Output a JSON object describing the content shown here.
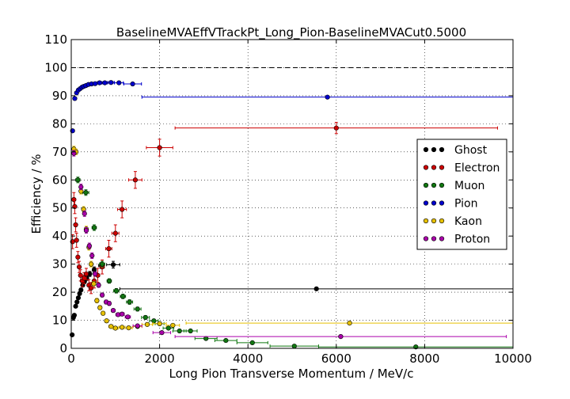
{
  "chart_data": {
    "type": "scatter",
    "title": "BaselineMVAEffVTrackPt_Long_Pion-BaselineMVACut0.5000",
    "xlabel": "Long Pion Transverse Momentum / MeV/c",
    "ylabel": "Efficiency / %",
    "xlim": [
      0,
      10000
    ],
    "ylim": [
      0,
      110
    ],
    "xticks": [
      0,
      2000,
      4000,
      6000,
      8000,
      10000
    ],
    "yticks": [
      0,
      10,
      20,
      30,
      40,
      50,
      60,
      70,
      80,
      90,
      100,
      110
    ],
    "grid": true,
    "reference_line_y": 100,
    "legend_position": "right",
    "series": [
      {
        "name": "Ghost",
        "color": "#000000",
        "points": [
          {
            "x": 20,
            "y": 4.8,
            "xerr": 20,
            "yerr": 0.3
          },
          {
            "x": 50,
            "y": 11.0,
            "xerr": 10,
            "yerr": 0.4
          },
          {
            "x": 70,
            "y": 11.8,
            "xerr": 10,
            "yerr": 0.4
          },
          {
            "x": 100,
            "y": 15.0,
            "xerr": 10,
            "yerr": 0.5
          },
          {
            "x": 130,
            "y": 16.5,
            "xerr": 10,
            "yerr": 0.5
          },
          {
            "x": 160,
            "y": 18.0,
            "xerr": 10,
            "yerr": 0.5
          },
          {
            "x": 190,
            "y": 19.5,
            "xerr": 10,
            "yerr": 0.6
          },
          {
            "x": 220,
            "y": 20.8,
            "xerr": 10,
            "yerr": 0.6
          },
          {
            "x": 260,
            "y": 22.5,
            "xerr": 15,
            "yerr": 0.6
          },
          {
            "x": 300,
            "y": 23.8,
            "xerr": 15,
            "yerr": 0.7
          },
          {
            "x": 350,
            "y": 25.0,
            "xerr": 20,
            "yerr": 0.8
          },
          {
            "x": 420,
            "y": 26.5,
            "xerr": 30,
            "yerr": 0.9
          },
          {
            "x": 520,
            "y": 28.0,
            "xerr": 40,
            "yerr": 1.0
          },
          {
            "x": 680,
            "y": 29.5,
            "xerr": 60,
            "yerr": 1.0
          },
          {
            "x": 950,
            "y": 29.8,
            "xerr": 150,
            "yerr": 1.2
          },
          {
            "x": 5550,
            "y": 21.2,
            "xerr": 4450,
            "yerr": 0.5
          }
        ]
      },
      {
        "name": "Electron",
        "color": "#cc0000",
        "points": [
          {
            "x": 30,
            "y": 38.0,
            "xerr": 20,
            "yerr": 2.5
          },
          {
            "x": 60,
            "y": 53.0,
            "xerr": 10,
            "yerr": 2.5
          },
          {
            "x": 80,
            "y": 50.5,
            "xerr": 10,
            "yerr": 2.5
          },
          {
            "x": 100,
            "y": 44.0,
            "xerr": 10,
            "yerr": 2.5
          },
          {
            "x": 120,
            "y": 38.5,
            "xerr": 10,
            "yerr": 2.5
          },
          {
            "x": 150,
            "y": 32.5,
            "xerr": 10,
            "yerr": 2.0
          },
          {
            "x": 180,
            "y": 29.0,
            "xerr": 10,
            "yerr": 2.0
          },
          {
            "x": 210,
            "y": 26.0,
            "xerr": 10,
            "yerr": 2.0
          },
          {
            "x": 250,
            "y": 24.0,
            "xerr": 15,
            "yerr": 2.0
          },
          {
            "x": 290,
            "y": 25.0,
            "xerr": 15,
            "yerr": 2.0
          },
          {
            "x": 340,
            "y": 26.5,
            "xerr": 20,
            "yerr": 2.0
          },
          {
            "x": 400,
            "y": 22.5,
            "xerr": 25,
            "yerr": 2.0
          },
          {
            "x": 450,
            "y": 21.5,
            "xerr": 25,
            "yerr": 2.0
          },
          {
            "x": 520,
            "y": 24.0,
            "xerr": 30,
            "yerr": 2.5
          },
          {
            "x": 600,
            "y": 26.0,
            "xerr": 40,
            "yerr": 2.5
          },
          {
            "x": 700,
            "y": 29.0,
            "xerr": 50,
            "yerr": 2.5
          },
          {
            "x": 850,
            "y": 35.5,
            "xerr": 70,
            "yerr": 3.0
          },
          {
            "x": 1000,
            "y": 41.0,
            "xerr": 80,
            "yerr": 3.0
          },
          {
            "x": 1150,
            "y": 49.5,
            "xerr": 100,
            "yerr": 3.0
          },
          {
            "x": 1450,
            "y": 60.0,
            "xerr": 150,
            "yerr": 3.0
          },
          {
            "x": 2000,
            "y": 71.5,
            "xerr": 300,
            "yerr": 3.0
          },
          {
            "x": 6000,
            "y": 78.5,
            "xerr": 3650,
            "yerr": 2.0
          }
        ]
      },
      {
        "name": "Muon",
        "color": "#117711",
        "points": [
          {
            "x": 150,
            "y": 60.0,
            "xerr": 50,
            "yerr": 1.0
          },
          {
            "x": 330,
            "y": 55.5,
            "xerr": 70,
            "yerr": 1.0
          },
          {
            "x": 520,
            "y": 43.0,
            "xerr": 50,
            "yerr": 1.0
          },
          {
            "x": 700,
            "y": 30.0,
            "xerr": 60,
            "yerr": 1.0
          },
          {
            "x": 860,
            "y": 24.0,
            "xerr": 50,
            "yerr": 0.8
          },
          {
            "x": 1020,
            "y": 20.5,
            "xerr": 60,
            "yerr": 0.8
          },
          {
            "x": 1170,
            "y": 18.5,
            "xerr": 60,
            "yerr": 0.8
          },
          {
            "x": 1320,
            "y": 16.5,
            "xerr": 70,
            "yerr": 0.8
          },
          {
            "x": 1500,
            "y": 14.0,
            "xerr": 80,
            "yerr": 0.7
          },
          {
            "x": 1680,
            "y": 11.0,
            "xerr": 90,
            "yerr": 0.6
          },
          {
            "x": 1870,
            "y": 9.8,
            "xerr": 100,
            "yerr": 0.6
          },
          {
            "x": 2000,
            "y": 8.8,
            "xerr": 100,
            "yerr": 0.6
          },
          {
            "x": 2200,
            "y": 7.2,
            "xerr": 120,
            "yerr": 0.5
          },
          {
            "x": 2450,
            "y": 6.2,
            "xerr": 150,
            "yerr": 0.5
          },
          {
            "x": 2700,
            "y": 6.2,
            "xerr": 150,
            "yerr": 0.5
          },
          {
            "x": 3050,
            "y": 3.5,
            "xerr": 250,
            "yerr": 0.4
          },
          {
            "x": 3500,
            "y": 2.8,
            "xerr": 250,
            "yerr": 0.4
          },
          {
            "x": 4100,
            "y": 2.0,
            "xerr": 350,
            "yerr": 0.3
          },
          {
            "x": 5050,
            "y": 0.8,
            "xerr": 550,
            "yerr": 0.2
          },
          {
            "x": 7800,
            "y": 0.5,
            "xerr": 2200,
            "yerr": 0.2
          }
        ]
      },
      {
        "name": "Pion",
        "color": "#0000cc",
        "points": [
          {
            "x": 30,
            "y": 77.5,
            "xerr": 30,
            "yerr": 0.5
          },
          {
            "x": 80,
            "y": 89.0,
            "xerr": 15,
            "yerr": 0.3
          },
          {
            "x": 120,
            "y": 91.0,
            "xerr": 10,
            "yerr": 0.3
          },
          {
            "x": 160,
            "y": 92.0,
            "xerr": 10,
            "yerr": 0.3
          },
          {
            "x": 200,
            "y": 92.5,
            "xerr": 10,
            "yerr": 0.3
          },
          {
            "x": 240,
            "y": 93.0,
            "xerr": 10,
            "yerr": 0.3
          },
          {
            "x": 280,
            "y": 93.3,
            "xerr": 15,
            "yerr": 0.3
          },
          {
            "x": 330,
            "y": 93.6,
            "xerr": 20,
            "yerr": 0.3
          },
          {
            "x": 390,
            "y": 94.0,
            "xerr": 25,
            "yerr": 0.3
          },
          {
            "x": 460,
            "y": 94.2,
            "xerr": 30,
            "yerr": 0.3
          },
          {
            "x": 540,
            "y": 94.3,
            "xerr": 35,
            "yerr": 0.3
          },
          {
            "x": 640,
            "y": 94.6,
            "xerr": 50,
            "yerr": 0.3
          },
          {
            "x": 760,
            "y": 94.6,
            "xerr": 60,
            "yerr": 0.3
          },
          {
            "x": 900,
            "y": 94.7,
            "xerr": 70,
            "yerr": 0.3
          },
          {
            "x": 1080,
            "y": 94.6,
            "xerr": 100,
            "yerr": 0.3
          },
          {
            "x": 1390,
            "y": 94.2,
            "xerr": 200,
            "yerr": 0.3
          },
          {
            "x": 5800,
            "y": 89.5,
            "xerr": 4200,
            "yerr": 0.3
          }
        ]
      },
      {
        "name": "Kaon",
        "color": "#e6c000",
        "points": [
          {
            "x": 60,
            "y": 71.0,
            "xerr": 20,
            "yerr": 1.0
          },
          {
            "x": 110,
            "y": 70.0,
            "xerr": 10,
            "yerr": 1.0
          },
          {
            "x": 220,
            "y": 56.0,
            "xerr": 15,
            "yerr": 1.0
          },
          {
            "x": 280,
            "y": 49.5,
            "xerr": 15,
            "yerr": 1.0
          },
          {
            "x": 340,
            "y": 42.5,
            "xerr": 20,
            "yerr": 1.0
          },
          {
            "x": 400,
            "y": 36.0,
            "xerr": 20,
            "yerr": 1.0
          },
          {
            "x": 450,
            "y": 30.0,
            "xerr": 20,
            "yerr": 1.0
          },
          {
            "x": 510,
            "y": 23.0,
            "xerr": 25,
            "yerr": 0.8
          },
          {
            "x": 580,
            "y": 17.0,
            "xerr": 25,
            "yerr": 0.8
          },
          {
            "x": 650,
            "y": 14.5,
            "xerr": 30,
            "yerr": 0.7
          },
          {
            "x": 720,
            "y": 12.5,
            "xerr": 30,
            "yerr": 0.7
          },
          {
            "x": 800,
            "y": 9.8,
            "xerr": 40,
            "yerr": 0.6
          },
          {
            "x": 900,
            "y": 7.8,
            "xerr": 50,
            "yerr": 0.5
          },
          {
            "x": 1000,
            "y": 7.2,
            "xerr": 60,
            "yerr": 0.5
          },
          {
            "x": 1150,
            "y": 7.5,
            "xerr": 70,
            "yerr": 0.5
          },
          {
            "x": 1300,
            "y": 7.3,
            "xerr": 80,
            "yerr": 0.5
          },
          {
            "x": 1500,
            "y": 7.8,
            "xerr": 100,
            "yerr": 0.5
          },
          {
            "x": 1720,
            "y": 8.5,
            "xerr": 120,
            "yerr": 0.5
          },
          {
            "x": 2000,
            "y": 8.8,
            "xerr": 150,
            "yerr": 0.5
          },
          {
            "x": 2300,
            "y": 8.2,
            "xerr": 150,
            "yerr": 0.5
          },
          {
            "x": 6300,
            "y": 9.0,
            "xerr": 3700,
            "yerr": 0.4
          }
        ]
      },
      {
        "name": "Proton",
        "color": "#aa00aa",
        "points": [
          {
            "x": 60,
            "y": 69.5,
            "xerr": 20,
            "yerr": 1.0
          },
          {
            "x": 220,
            "y": 57.5,
            "xerr": 15,
            "yerr": 1.0
          },
          {
            "x": 300,
            "y": 48.0,
            "xerr": 15,
            "yerr": 1.0
          },
          {
            "x": 340,
            "y": 42.0,
            "xerr": 20,
            "yerr": 1.0
          },
          {
            "x": 410,
            "y": 36.5,
            "xerr": 20,
            "yerr": 1.0
          },
          {
            "x": 470,
            "y": 33.0,
            "xerr": 20,
            "yerr": 1.0
          },
          {
            "x": 540,
            "y": 26.5,
            "xerr": 25,
            "yerr": 0.8
          },
          {
            "x": 620,
            "y": 22.5,
            "xerr": 25,
            "yerr": 0.8
          },
          {
            "x": 700,
            "y": 19.0,
            "xerr": 30,
            "yerr": 0.7
          },
          {
            "x": 790,
            "y": 16.5,
            "xerr": 30,
            "yerr": 0.7
          },
          {
            "x": 860,
            "y": 16.0,
            "xerr": 30,
            "yerr": 0.7
          },
          {
            "x": 950,
            "y": 13.5,
            "xerr": 40,
            "yerr": 0.6
          },
          {
            "x": 1060,
            "y": 12.0,
            "xerr": 50,
            "yerr": 0.6
          },
          {
            "x": 1150,
            "y": 12.2,
            "xerr": 50,
            "yerr": 0.6
          },
          {
            "x": 1280,
            "y": 11.2,
            "xerr": 60,
            "yerr": 0.6
          },
          {
            "x": 1500,
            "y": 8.0,
            "xerr": 100,
            "yerr": 0.5
          },
          {
            "x": 2050,
            "y": 5.6,
            "xerr": 200,
            "yerr": 0.4
          },
          {
            "x": 6100,
            "y": 4.2,
            "xerr": 3750,
            "yerr": 0.3
          }
        ]
      }
    ]
  }
}
